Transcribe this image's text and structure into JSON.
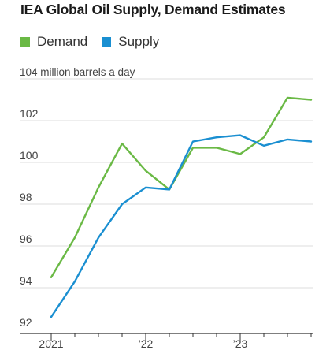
{
  "chart_data": {
    "type": "line",
    "title": "IEA Global Oil Supply, Demand Estimates",
    "ylabel": "million barrels a day",
    "ylim": [
      92,
      104
    ],
    "yticks": [
      92,
      94,
      96,
      98,
      100,
      102,
      104
    ],
    "y_top_label": "104 million barrels a day",
    "x": [
      "2021 Q1",
      "2021 Q2",
      "2021 Q3",
      "2021 Q4",
      "2022 Q1",
      "2022 Q2",
      "2022 Q3",
      "2022 Q4",
      "2023 Q1",
      "2023 Q2",
      "2023 Q3",
      "2023 Q4"
    ],
    "xtick_labels": [
      {
        "index": 0,
        "label": "2021"
      },
      {
        "index": 4,
        "label": "’22"
      },
      {
        "index": 8,
        "label": "’23"
      }
    ],
    "series": [
      {
        "name": "Demand",
        "color": "#6ab945",
        "values": [
          94.5,
          96.4,
          98.8,
          100.9,
          99.6,
          98.7,
          100.7,
          100.7,
          100.4,
          101.2,
          103.1,
          103.0
        ]
      },
      {
        "name": "Supply",
        "color": "#1a8fd1",
        "values": [
          92.6,
          94.3,
          96.4,
          98.0,
          98.8,
          98.7,
          101.0,
          101.2,
          101.3,
          100.8,
          101.1,
          101.0
        ]
      }
    ],
    "grid": true,
    "legend_position": "top-left"
  }
}
